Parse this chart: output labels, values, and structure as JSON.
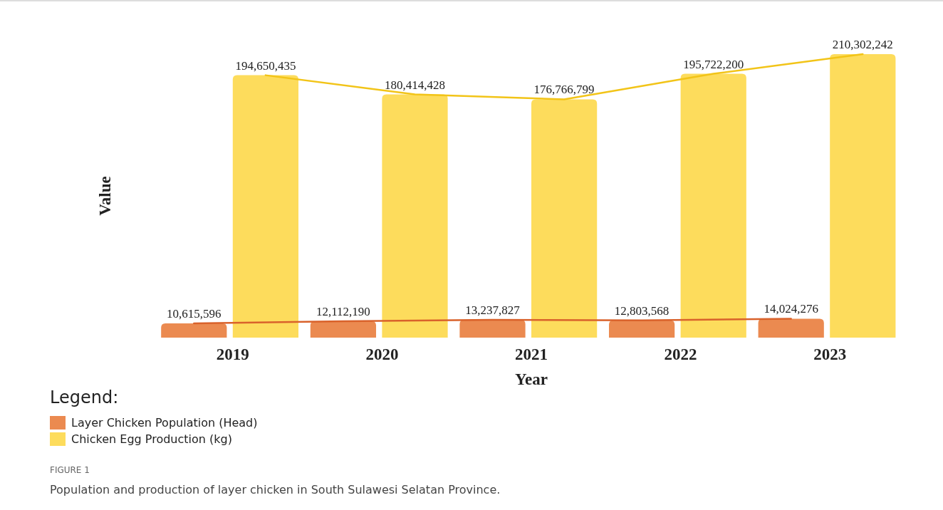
{
  "chart_data": {
    "type": "bar",
    "xlabel": "Year",
    "ylabel": "Value",
    "legend_title": "Legend:",
    "categories": [
      "2019",
      "2020",
      "2021",
      "2022",
      "2023"
    ],
    "series": [
      {
        "name": "Layer Chicken Population (Head)",
        "color": "#eb8a50",
        "values": [
          10615596,
          12112190,
          13237827,
          12803568,
          14024276
        ],
        "value_labels": [
          "10,615,596",
          "12,112,190",
          "13,237,827",
          "12,803,568",
          "14,024,276"
        ]
      },
      {
        "name": "Chicken Egg Production (kg)",
        "color": "#fddc5c",
        "values": [
          194650435,
          180414428,
          176766799,
          195722200,
          210302242
        ],
        "value_labels": [
          "194,650,435",
          "180,414,428",
          "176,766,799",
          "195,722,200",
          "210,302,242"
        ]
      },
      {
        "type": "line",
        "color": "#d9622b",
        "values": [
          10615596,
          12112190,
          13237827,
          12803568,
          14024276
        ]
      },
      {
        "type": "line",
        "color": "#f2c418",
        "values": [
          194650435,
          180414428,
          176766799,
          195722200,
          210302242
        ]
      }
    ],
    "tick_labels": "x",
    "legend": "bottom left",
    "annotations": [
      "FIGURE 1",
      "Population and production of layer chicken in South Sulawesi Selatan Province."
    ]
  }
}
